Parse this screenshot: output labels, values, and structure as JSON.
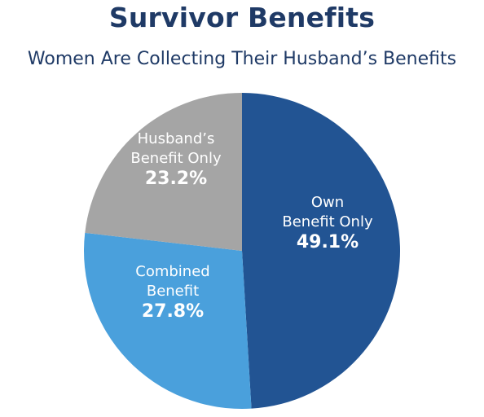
{
  "chart_data": {
    "type": "pie",
    "title": "Survivor Benefits",
    "subtitle": "Women Are Collecting Their Husband’s Benefits",
    "start_angle_deg": 0,
    "direction": "clockwise",
    "slices": [
      {
        "label_lines": [
          "Own",
          "Benefit Only"
        ],
        "value": 49.1,
        "value_label": "49.1%",
        "color": "#225493"
      },
      {
        "label_lines": [
          "Combined",
          "Benefit"
        ],
        "value": 27.8,
        "value_label": "27.8%",
        "color": "#4aa0dc"
      },
      {
        "label_lines": [
          "Husband’s",
          "Benefit Only"
        ],
        "value": 23.2,
        "value_label": "23.2%",
        "color": "#a5a5a5"
      }
    ],
    "legend": "none"
  }
}
